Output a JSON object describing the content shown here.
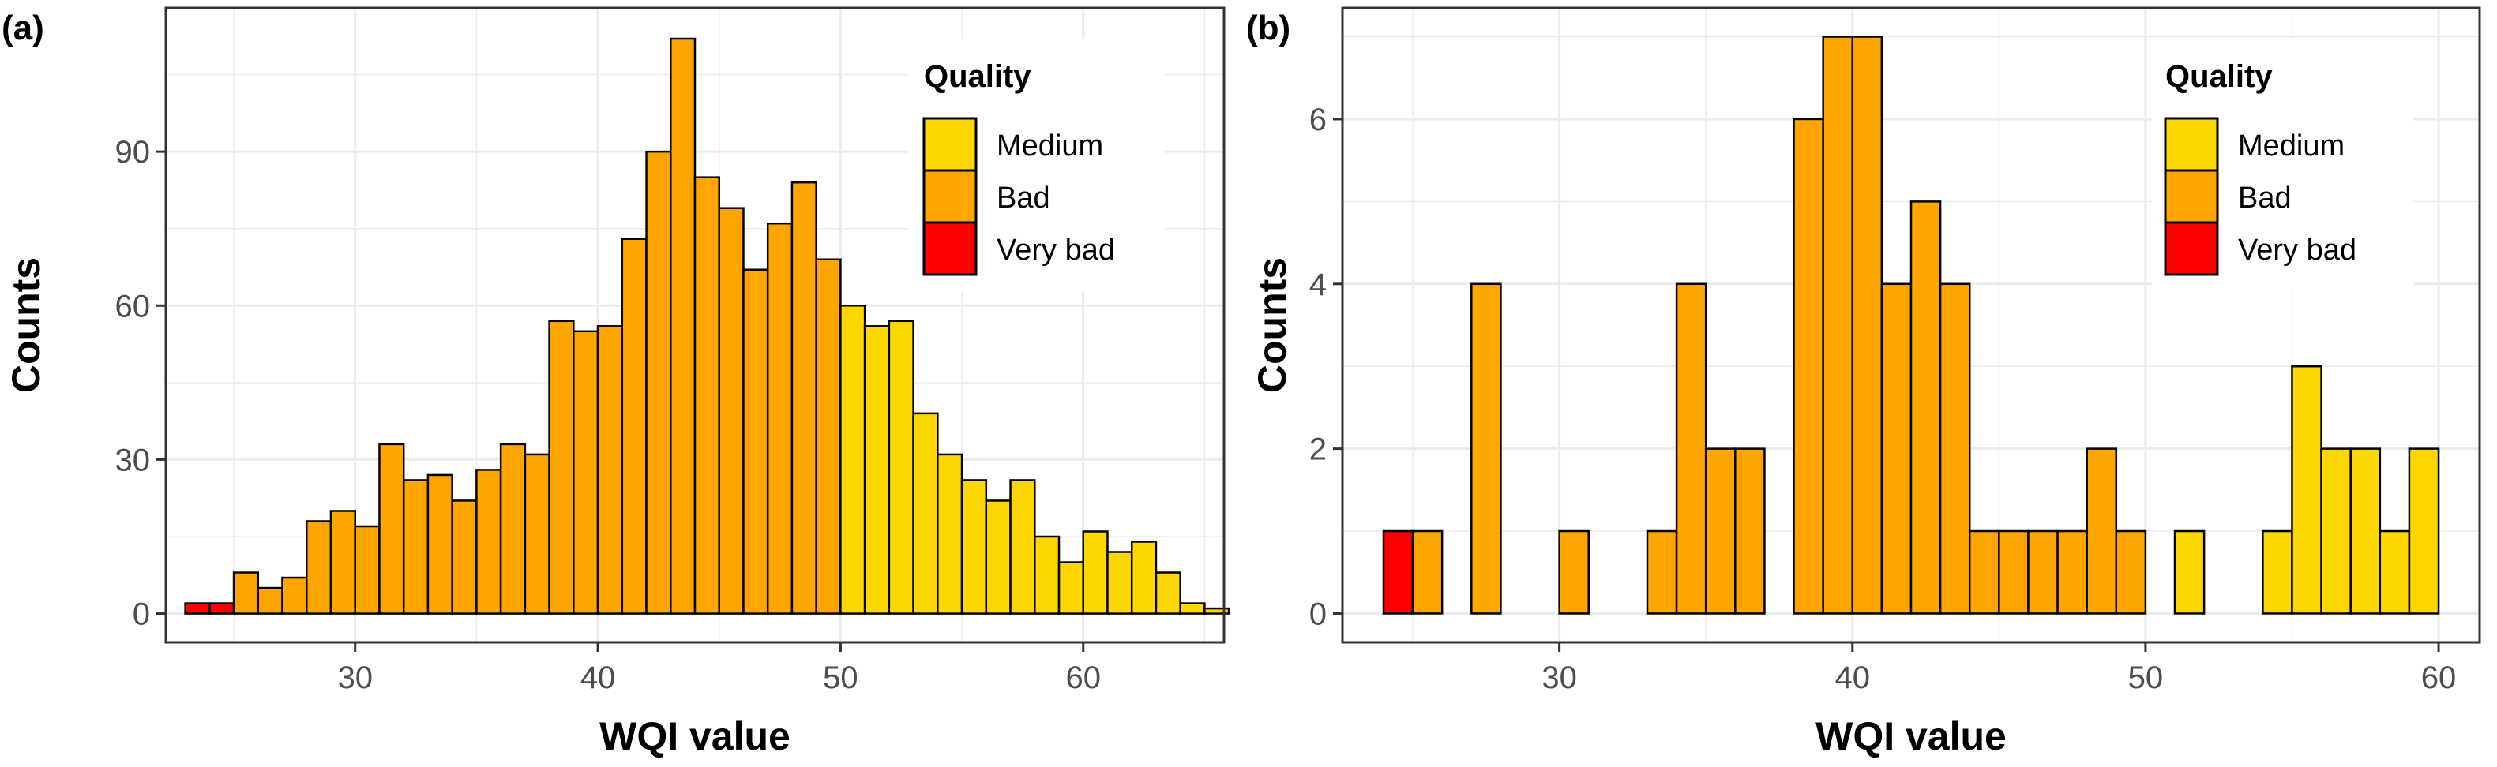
{
  "colors": {
    "medium": "#FFD700",
    "bad": "#FFA500",
    "very_bad": "#FF0000",
    "grid": "#EBEBEB",
    "panel_border": "#333333",
    "tick_text": "#4D4D4D"
  },
  "chart_data": [
    {
      "type": "bar",
      "panel_label": "(a)",
      "title": "",
      "xlabel": "WQI value",
      "ylabel": "Counts",
      "xlim": [
        22.2,
        65.8
      ],
      "ylim": [
        -5.6,
        118
      ],
      "xticks": [
        30,
        40,
        50,
        60
      ],
      "yticks": [
        0,
        30,
        60,
        90
      ],
      "bin_width": 1,
      "grid": true,
      "legend": {
        "title": "Quality",
        "position": "top-right",
        "entries": [
          {
            "label": "Medium",
            "color_key": "medium"
          },
          {
            "label": "Bad",
            "color_key": "bad"
          },
          {
            "label": "Very bad",
            "color_key": "very_bad"
          }
        ]
      },
      "bins": [
        {
          "x": 23.5,
          "count": 2,
          "quality": "very_bad"
        },
        {
          "x": 24.5,
          "count": 2,
          "quality": "very_bad"
        },
        {
          "x": 25.5,
          "count": 8,
          "quality": "bad"
        },
        {
          "x": 26.5,
          "count": 5,
          "quality": "bad"
        },
        {
          "x": 27.5,
          "count": 7,
          "quality": "bad"
        },
        {
          "x": 28.5,
          "count": 18,
          "quality": "bad"
        },
        {
          "x": 29.5,
          "count": 20,
          "quality": "bad"
        },
        {
          "x": 30.5,
          "count": 17,
          "quality": "bad"
        },
        {
          "x": 31.5,
          "count": 33,
          "quality": "bad"
        },
        {
          "x": 32.5,
          "count": 26,
          "quality": "bad"
        },
        {
          "x": 33.5,
          "count": 27,
          "quality": "bad"
        },
        {
          "x": 34.5,
          "count": 22,
          "quality": "bad"
        },
        {
          "x": 35.5,
          "count": 28,
          "quality": "bad"
        },
        {
          "x": 36.5,
          "count": 33,
          "quality": "bad"
        },
        {
          "x": 37.5,
          "count": 31,
          "quality": "bad"
        },
        {
          "x": 38.5,
          "count": 57,
          "quality": "bad"
        },
        {
          "x": 39.5,
          "count": 55,
          "quality": "bad"
        },
        {
          "x": 40.5,
          "count": 56,
          "quality": "bad"
        },
        {
          "x": 41.5,
          "count": 73,
          "quality": "bad"
        },
        {
          "x": 42.5,
          "count": 90,
          "quality": "bad"
        },
        {
          "x": 43.5,
          "count": 112,
          "quality": "bad"
        },
        {
          "x": 44.5,
          "count": 85,
          "quality": "bad"
        },
        {
          "x": 45.5,
          "count": 79,
          "quality": "bad"
        },
        {
          "x": 46.5,
          "count": 67,
          "quality": "bad"
        },
        {
          "x": 47.5,
          "count": 76,
          "quality": "bad"
        },
        {
          "x": 48.5,
          "count": 84,
          "quality": "bad"
        },
        {
          "x": 49.5,
          "count": 69,
          "quality": "bad"
        },
        {
          "x": 50.5,
          "count": 60,
          "quality": "medium"
        },
        {
          "x": 51.5,
          "count": 56,
          "quality": "medium"
        },
        {
          "x": 52.5,
          "count": 57,
          "quality": "medium"
        },
        {
          "x": 53.5,
          "count": 39,
          "quality": "medium"
        },
        {
          "x": 54.5,
          "count": 31,
          "quality": "medium"
        },
        {
          "x": 55.5,
          "count": 26,
          "quality": "medium"
        },
        {
          "x": 56.5,
          "count": 22,
          "quality": "medium"
        },
        {
          "x": 57.5,
          "count": 26,
          "quality": "medium"
        },
        {
          "x": 58.5,
          "count": 15,
          "quality": "medium"
        },
        {
          "x": 59.5,
          "count": 10,
          "quality": "medium"
        },
        {
          "x": 60.5,
          "count": 16,
          "quality": "medium"
        },
        {
          "x": 61.5,
          "count": 12,
          "quality": "medium"
        },
        {
          "x": 62.5,
          "count": 14,
          "quality": "medium"
        },
        {
          "x": 63.5,
          "count": 8,
          "quality": "medium"
        },
        {
          "x": 64.5,
          "count": 2,
          "quality": "medium"
        },
        {
          "x": 65.5,
          "count": 1,
          "quality": "medium"
        }
      ]
    },
    {
      "type": "bar",
      "panel_label": "(b)",
      "title": "",
      "xlabel": "WQI value",
      "ylabel": "Counts",
      "xlim": [
        22.6,
        61.4
      ],
      "ylim": [
        -0.35,
        7.35
      ],
      "xticks": [
        30,
        40,
        50,
        60
      ],
      "yticks": [
        0,
        2,
        4,
        6
      ],
      "bin_width": 1,
      "grid": true,
      "legend": {
        "title": "Quality",
        "position": "top-right",
        "entries": [
          {
            "label": "Medium",
            "color_key": "medium"
          },
          {
            "label": "Bad",
            "color_key": "bad"
          },
          {
            "label": "Very bad",
            "color_key": "very_bad"
          }
        ]
      },
      "bins": [
        {
          "x": 24.5,
          "count": 1,
          "quality": "very_bad"
        },
        {
          "x": 25.5,
          "count": 1,
          "quality": "bad"
        },
        {
          "x": 26.5,
          "count": 0,
          "quality": "bad"
        },
        {
          "x": 27.5,
          "count": 4,
          "quality": "bad"
        },
        {
          "x": 28.5,
          "count": 0,
          "quality": "bad"
        },
        {
          "x": 29.5,
          "count": 0,
          "quality": "bad"
        },
        {
          "x": 30.5,
          "count": 1,
          "quality": "bad"
        },
        {
          "x": 31.5,
          "count": 0,
          "quality": "bad"
        },
        {
          "x": 32.5,
          "count": 0,
          "quality": "bad"
        },
        {
          "x": 33.5,
          "count": 1,
          "quality": "bad"
        },
        {
          "x": 34.5,
          "count": 4,
          "quality": "bad"
        },
        {
          "x": 35.5,
          "count": 2,
          "quality": "bad"
        },
        {
          "x": 36.5,
          "count": 2,
          "quality": "bad"
        },
        {
          "x": 37.5,
          "count": 0,
          "quality": "bad"
        },
        {
          "x": 38.5,
          "count": 6,
          "quality": "bad"
        },
        {
          "x": 39.5,
          "count": 7,
          "quality": "bad"
        },
        {
          "x": 40.5,
          "count": 7,
          "quality": "bad"
        },
        {
          "x": 41.5,
          "count": 4,
          "quality": "bad"
        },
        {
          "x": 42.5,
          "count": 5,
          "quality": "bad"
        },
        {
          "x": 43.5,
          "count": 4,
          "quality": "bad"
        },
        {
          "x": 44.5,
          "count": 1,
          "quality": "bad"
        },
        {
          "x": 45.5,
          "count": 1,
          "quality": "bad"
        },
        {
          "x": 46.5,
          "count": 1,
          "quality": "bad"
        },
        {
          "x": 47.5,
          "count": 1,
          "quality": "bad"
        },
        {
          "x": 48.5,
          "count": 2,
          "quality": "bad"
        },
        {
          "x": 49.5,
          "count": 1,
          "quality": "bad"
        },
        {
          "x": 50.5,
          "count": 0,
          "quality": "medium"
        },
        {
          "x": 51.5,
          "count": 1,
          "quality": "medium"
        },
        {
          "x": 52.5,
          "count": 0,
          "quality": "medium"
        },
        {
          "x": 53.5,
          "count": 0,
          "quality": "medium"
        },
        {
          "x": 54.5,
          "count": 1,
          "quality": "medium"
        },
        {
          "x": 55.5,
          "count": 3,
          "quality": "medium"
        },
        {
          "x": 56.5,
          "count": 2,
          "quality": "medium"
        },
        {
          "x": 57.5,
          "count": 2,
          "quality": "medium"
        },
        {
          "x": 58.5,
          "count": 1,
          "quality": "medium"
        },
        {
          "x": 59.5,
          "count": 2,
          "quality": "medium"
        }
      ]
    }
  ]
}
